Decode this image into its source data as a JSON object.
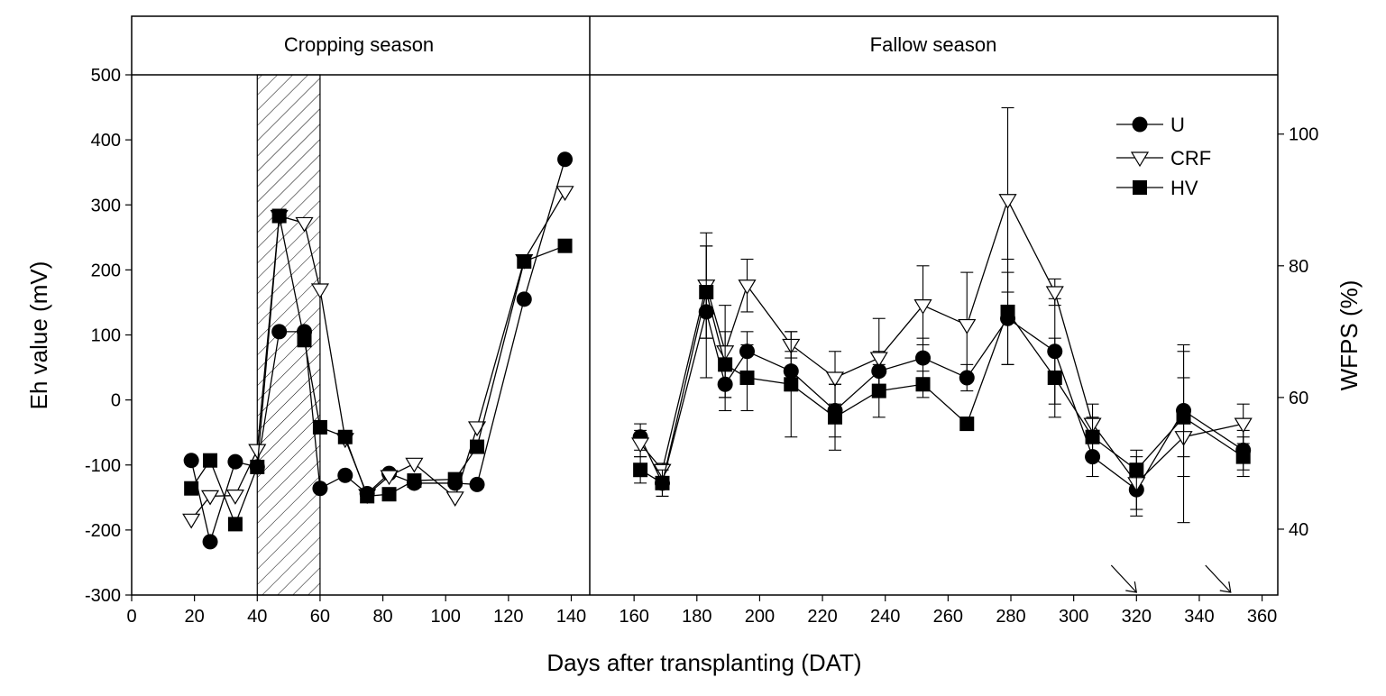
{
  "chart_data": {
    "type": "line",
    "xlabel": "Days after transplanting (DAT)",
    "ylabel_left": "Eh value (mV)",
    "ylabel_right": "WFPS (%)",
    "seasons": [
      {
        "label": "Cropping season",
        "x_range": [
          0,
          146
        ]
      },
      {
        "label": "Fallow season",
        "x_range": [
          146,
          365
        ]
      }
    ],
    "x_ticks": [
      0,
      20,
      40,
      60,
      80,
      100,
      120,
      140,
      160,
      180,
      200,
      220,
      240,
      260,
      280,
      300,
      320,
      340,
      360
    ],
    "xlim": [
      0,
      365
    ],
    "ylim_left": [
      -300,
      500
    ],
    "y_ticks_left": [
      -300,
      -200,
      -100,
      0,
      100,
      200,
      300,
      400,
      500
    ],
    "ylim_right": [
      30,
      109
    ],
    "y_ticks_right": [
      40,
      60,
      80,
      100
    ],
    "shaded_region": {
      "x": [
        40,
        60
      ],
      "pattern": "hatched"
    },
    "arrows_at_x": [
      320,
      350
    ],
    "legend": [
      "U",
      "CRF",
      "HV"
    ],
    "eh_series": [
      {
        "name": "U",
        "marker": "circle",
        "x": [
          19,
          25,
          33,
          40,
          47,
          55,
          60,
          68,
          75,
          82,
          90,
          103,
          110,
          125,
          138
        ],
        "y": [
          -93,
          -218,
          -95,
          -103,
          105,
          105,
          -136,
          -116,
          -144,
          -113,
          -128,
          -128,
          -130,
          155,
          370
        ]
      },
      {
        "name": "CRF",
        "marker": "triangle-down",
        "x": [
          19,
          25,
          33,
          40,
          47,
          55,
          60,
          68,
          75,
          82,
          90,
          103,
          110,
          125,
          138
        ],
        "y": [
          -184,
          -148,
          -147,
          -77,
          283,
          272,
          170,
          -60,
          -146,
          -117,
          -98,
          -150,
          -42,
          215,
          320
        ]
      },
      {
        "name": "HV",
        "marker": "square",
        "x": [
          19,
          25,
          33,
          40,
          47,
          55,
          60,
          68,
          75,
          82,
          90,
          103,
          110,
          125,
          138
        ],
        "y": [
          -136,
          -93,
          -191,
          -103,
          283,
          92,
          -42,
          -57,
          -148,
          -145,
          -124,
          -122,
          -72,
          213,
          237
        ]
      }
    ],
    "wfps_series": [
      {
        "name": "U",
        "marker": "circle",
        "x": [
          162,
          169,
          183,
          189,
          196,
          210,
          224,
          238,
          252,
          266,
          279,
          294,
          306,
          320,
          335,
          354
        ],
        "y": [
          54,
          47,
          73,
          62,
          67,
          64,
          58,
          64,
          66,
          63,
          72,
          67,
          51,
          46,
          58,
          52
        ],
        "err": [
          2,
          2,
          10,
          4,
          3,
          3,
          4,
          3,
          3,
          2,
          7,
          8,
          3,
          4,
          10,
          3
        ]
      },
      {
        "name": "CRF",
        "marker": "triangle-down",
        "x": [
          162,
          169,
          183,
          189,
          196,
          210,
          224,
          238,
          252,
          266,
          279,
          294,
          306,
          320,
          335,
          354
        ],
        "y": [
          53,
          49,
          77,
          67,
          77,
          68,
          63,
          66,
          74,
          71,
          90,
          76,
          56,
          47,
          54,
          56
        ],
        "err": [
          2,
          1,
          8,
          7,
          4,
          2,
          4,
          6,
          6,
          8,
          14,
          2,
          3,
          4,
          13,
          3
        ]
      },
      {
        "name": "HV",
        "marker": "square",
        "x": [
          162,
          169,
          183,
          189,
          196,
          210,
          224,
          238,
          252,
          266,
          279,
          294,
          306,
          320,
          335,
          354
        ],
        "y": [
          49,
          47,
          76,
          65,
          63,
          62,
          57,
          61,
          62,
          56,
          73,
          63,
          54,
          49,
          57,
          51
        ],
        "err": [
          2,
          2,
          7,
          5,
          5,
          8,
          5,
          4,
          2,
          1,
          8,
          6,
          3,
          3,
          6,
          3
        ]
      }
    ]
  }
}
